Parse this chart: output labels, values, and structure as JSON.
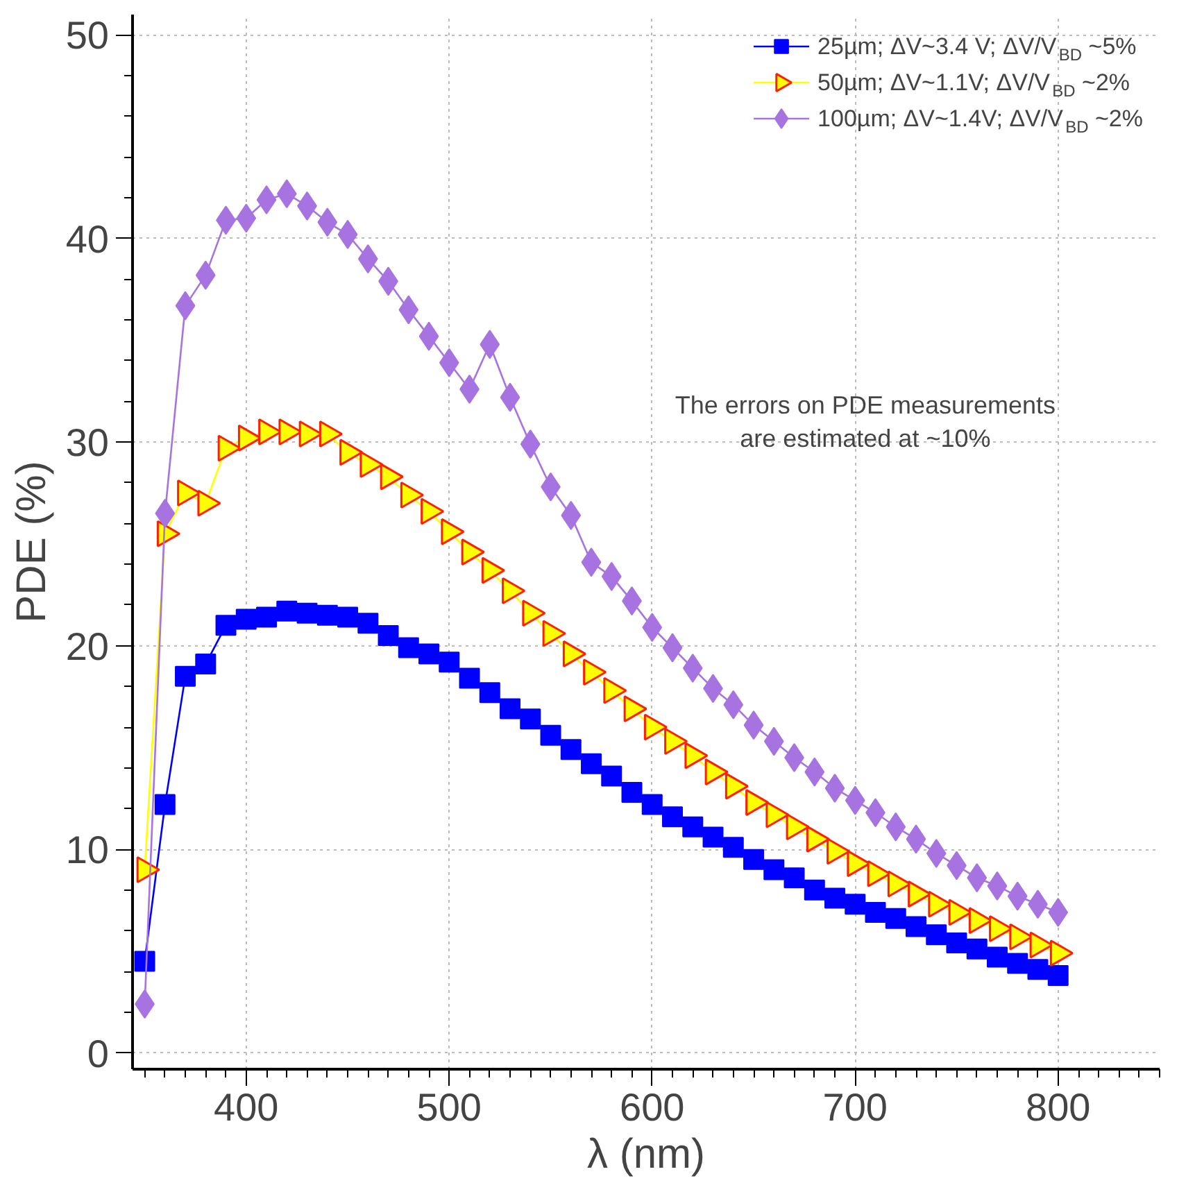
{
  "chart_data": {
    "type": "line",
    "xlabel": "λ (nm)",
    "ylabel": "PDE (%)",
    "x": [
      350,
      360,
      370,
      380,
      390,
      400,
      410,
      420,
      430,
      440,
      450,
      460,
      470,
      480,
      490,
      500,
      510,
      520,
      530,
      540,
      550,
      560,
      570,
      580,
      590,
      600,
      610,
      620,
      630,
      640,
      650,
      660,
      670,
      680,
      690,
      700,
      710,
      720,
      730,
      740,
      750,
      760,
      770,
      780,
      790,
      800
    ],
    "series": [
      {
        "name": "25µm; ΔV~3.4 V; ΔV/V$_{BD}$ ~5%",
        "color": "#0000ff",
        "marker": "square",
        "values": [
          4.5,
          12.2,
          18.5,
          19.1,
          21.0,
          21.3,
          21.4,
          21.7,
          21.6,
          21.5,
          21.4,
          21.1,
          20.5,
          19.9,
          19.6,
          19.2,
          18.4,
          17.7,
          16.9,
          16.4,
          15.6,
          14.9,
          14.2,
          13.6,
          12.8,
          12.2,
          11.6,
          11.1,
          10.6,
          10.1,
          9.5,
          9.0,
          8.6,
          8.0,
          7.6,
          7.3,
          6.9,
          6.6,
          6.2,
          5.8,
          5.4,
          5.1,
          4.7,
          4.4,
          4.1,
          3.8
        ]
      },
      {
        "name": "50µm; ΔV~1.1V; ΔV/V$_{BD}$ ~2%",
        "color": "#ffff00",
        "marker": "triangle",
        "values": [
          9.0,
          25.5,
          27.5,
          27.0,
          29.7,
          30.2,
          30.5,
          30.5,
          30.4,
          30.4,
          29.5,
          28.9,
          28.3,
          27.4,
          26.6,
          25.6,
          24.6,
          23.7,
          22.7,
          21.6,
          20.6,
          19.6,
          18.7,
          17.8,
          16.9,
          16.0,
          15.3,
          14.6,
          13.8,
          13.1,
          12.3,
          11.7,
          11.1,
          10.5,
          9.9,
          9.3,
          8.8,
          8.3,
          7.8,
          7.3,
          6.9,
          6.5,
          6.1,
          5.7,
          5.3,
          4.9
        ]
      },
      {
        "name": "100µm; ΔV~1.4V; ΔV/V$_{BD}$ ~2%",
        "color": "#a673e0",
        "marker": "diamond",
        "values": [
          2.4,
          26.5,
          36.7,
          38.2,
          40.9,
          41.0,
          41.9,
          42.2,
          41.6,
          40.8,
          40.2,
          39.0,
          37.9,
          36.5,
          35.2,
          33.9,
          32.6,
          34.8,
          32.2,
          29.9,
          27.8,
          26.4,
          24.1,
          23.4,
          22.2,
          20.9,
          19.9,
          18.9,
          17.9,
          17.1,
          16.1,
          15.3,
          14.5,
          13.8,
          13.0,
          12.4,
          11.8,
          11.1,
          10.5,
          9.8,
          9.2,
          8.6,
          8.2,
          7.7,
          7.3,
          6.9
        ]
      }
    ],
    "xlim": [
      344,
      850
    ],
    "ylim": [
      -0.8,
      51
    ],
    "xticks": [
      400,
      500,
      600,
      700,
      800
    ],
    "yticks": [
      0,
      10,
      20,
      30,
      40,
      50
    ],
    "grid": true,
    "legend": "top right",
    "line_style": "solid",
    "annotations": [
      "The errors on PDE measurements\nare estimated at ~10%"
    ]
  }
}
